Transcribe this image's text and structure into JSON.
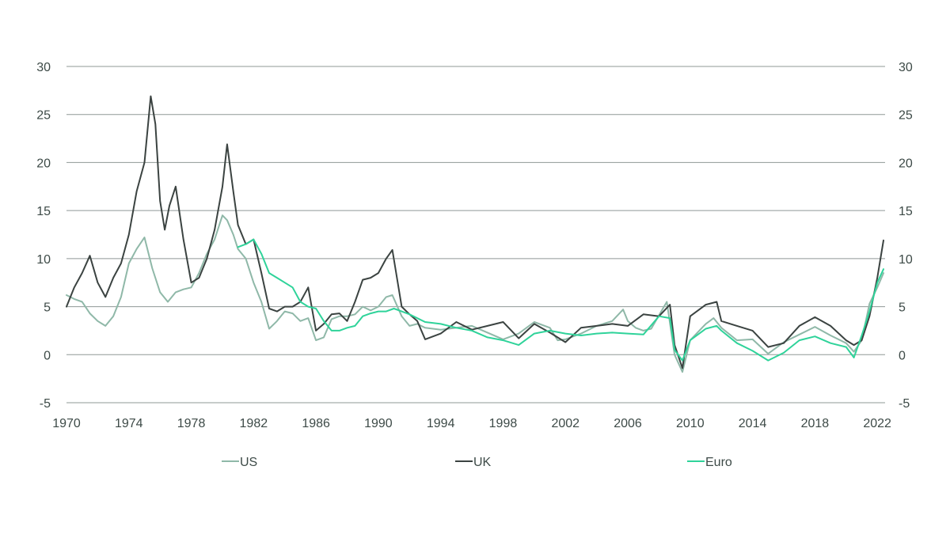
{
  "chart_data": {
    "type": "line",
    "title": "",
    "xlabel": "",
    "ylabel": "",
    "xlim": [
      1970,
      2022.5
    ],
    "ylim": [
      -5,
      30
    ],
    "y_ticks": [
      30,
      25,
      20,
      15,
      10,
      5,
      0,
      -5
    ],
    "y_tick_labels": [
      "30",
      "25",
      "20",
      "15",
      "10",
      "5",
      "0",
      "-5"
    ],
    "x_ticks": [
      1970,
      1974,
      1978,
      1982,
      1986,
      1990,
      1994,
      1998,
      2002,
      2006,
      2010,
      2014,
      2018,
      2022
    ],
    "x_tick_labels": [
      "1970",
      "1974",
      "1978",
      "1982",
      "1986",
      "1990",
      "1994",
      "1998",
      "2002",
      "2006",
      "2010",
      "2014",
      "2018",
      "2022"
    ],
    "grid": true,
    "dual_y_axis": true,
    "legend_position": "bottom",
    "series": [
      {
        "name": "US",
        "color": "#8fb8a8",
        "x": [
          1970,
          1970.5,
          1971,
          1971.5,
          1972,
          1972.5,
          1973,
          1973.5,
          1974,
          1974.5,
          1975,
          1975.5,
          1976,
          1976.5,
          1977,
          1977.5,
          1978,
          1978.5,
          1979,
          1979.5,
          1980,
          1980.3,
          1980.7,
          1981,
          1981.5,
          1982,
          1982.5,
          1983,
          1983.5,
          1984,
          1984.5,
          1985,
          1985.5,
          1986,
          1986.5,
          1987,
          1987.5,
          1988,
          1988.5,
          1989,
          1989.5,
          1990,
          1990.5,
          1990.9,
          1991.5,
          1992,
          1992.5,
          1993,
          1994,
          1995,
          1996,
          1997,
          1998,
          1999,
          2000,
          2001,
          2001.5,
          2002,
          2003,
          2004,
          2005,
          2005.7,
          2006,
          2006.5,
          2007,
          2007.5,
          2008,
          2008.5,
          2009,
          2009.5,
          2010,
          2011,
          2011.5,
          2012,
          2013,
          2014,
          2015,
          2016,
          2017,
          2018,
          2019,
          2020,
          2020.5,
          2021,
          2021.5,
          2022,
          2022.4
        ],
        "values": [
          6.2,
          5.8,
          5.5,
          4.3,
          3.5,
          3.0,
          4.0,
          6.0,
          9.5,
          11.0,
          12.2,
          9.0,
          6.5,
          5.5,
          6.5,
          6.8,
          7.0,
          8.5,
          10.5,
          12.0,
          14.5,
          14.0,
          12.5,
          11.0,
          10.0,
          7.5,
          5.5,
          2.7,
          3.5,
          4.5,
          4.3,
          3.5,
          3.8,
          1.5,
          1.8,
          3.7,
          4.0,
          4.0,
          4.2,
          5.0,
          4.6,
          5.0,
          6.0,
          6.2,
          4.0,
          3.0,
          3.2,
          2.8,
          2.6,
          2.8,
          3.0,
          2.3,
          1.6,
          2.2,
          3.4,
          2.8,
          1.5,
          1.6,
          2.2,
          3.0,
          3.5,
          4.7,
          3.5,
          2.8,
          2.5,
          2.7,
          4.1,
          5.5,
          0.0,
          -1.8,
          1.5,
          3.2,
          3.8,
          2.8,
          1.5,
          1.6,
          0.1,
          1.3,
          2.1,
          2.9,
          2.0,
          1.2,
          0.3,
          1.5,
          5.3,
          7.0,
          8.5
        ]
      },
      {
        "name": "UK",
        "color": "#3b4341",
        "x": [
          1970,
          1970.5,
          1971,
          1971.5,
          1972,
          1972.5,
          1973,
          1973.5,
          1974,
          1974.5,
          1975,
          1975.4,
          1975.7,
          1976,
          1976.3,
          1976.6,
          1977,
          1977.5,
          1978,
          1978.5,
          1979,
          1979.5,
          1980,
          1980.3,
          1980.7,
          1981,
          1981.5,
          1982,
          1982.5,
          1983,
          1983.5,
          1984,
          1984.5,
          1985,
          1985.5,
          1986,
          1986.5,
          1987,
          1987.5,
          1988,
          1988.5,
          1989,
          1989.5,
          1990,
          1990.5,
          1990.9,
          1991.5,
          1992,
          1992.5,
          1993,
          1994,
          1995,
          1996,
          1997,
          1998,
          1999,
          2000,
          2001,
          2002,
          2003,
          2004,
          2005,
          2006,
          2007,
          2008,
          2008.7,
          2009,
          2009.5,
          2010,
          2011,
          2011.7,
          2012,
          2013,
          2014,
          2015,
          2016,
          2017,
          2018,
          2019,
          2020,
          2020.5,
          2021,
          2021.5,
          2022,
          2022.4
        ],
        "values": [
          5.0,
          7.0,
          8.5,
          10.3,
          7.5,
          6.0,
          8.0,
          9.5,
          12.5,
          17.0,
          20.0,
          26.9,
          24.0,
          16.0,
          13.0,
          15.5,
          17.5,
          12.0,
          7.5,
          8.0,
          10.0,
          13.0,
          17.5,
          21.9,
          17.0,
          13.5,
          11.5,
          12.0,
          8.5,
          4.8,
          4.5,
          5.0,
          5.0,
          5.5,
          7.0,
          2.5,
          3.2,
          4.2,
          4.3,
          3.5,
          5.5,
          7.8,
          8.0,
          8.5,
          10.0,
          10.9,
          5.0,
          4.2,
          3.5,
          1.6,
          2.2,
          3.4,
          2.6,
          3.0,
          3.4,
          1.7,
          3.2,
          2.3,
          1.3,
          2.8,
          3.0,
          3.2,
          3.0,
          4.2,
          4.0,
          5.2,
          1.0,
          -1.4,
          4.0,
          5.2,
          5.5,
          3.5,
          3.0,
          2.5,
          0.8,
          1.2,
          3.0,
          3.9,
          3.0,
          1.5,
          1.0,
          1.5,
          4.0,
          8.0,
          11.9
        ]
      },
      {
        "name": "Euro",
        "color": "#2fd39a",
        "x": [
          1981,
          1981.5,
          1982,
          1982.5,
          1983,
          1983.5,
          1984,
          1984.5,
          1985,
          1985.5,
          1986,
          1986.5,
          1987,
          1987.5,
          1988,
          1988.5,
          1989,
          1989.5,
          1990,
          1990.5,
          1991,
          1991.5,
          1992,
          1993,
          1994,
          1995,
          1996,
          1997,
          1998,
          1999,
          2000,
          2001,
          2002,
          2003,
          2004,
          2005,
          2006,
          2007,
          2008,
          2008.7,
          2009,
          2009.5,
          2010,
          2011,
          2011.7,
          2012,
          2013,
          2014,
          2015,
          2016,
          2017,
          2018,
          2019,
          2020,
          2020.5,
          2021,
          2021.5,
          2022,
          2022.4
        ],
        "values": [
          11.2,
          11.5,
          12.0,
          10.5,
          8.5,
          8.0,
          7.5,
          7.0,
          5.5,
          5.0,
          4.8,
          3.5,
          2.5,
          2.5,
          2.8,
          3.0,
          4.0,
          4.3,
          4.5,
          4.5,
          4.8,
          4.5,
          4.2,
          3.4,
          3.2,
          2.8,
          2.5,
          1.8,
          1.5,
          1.0,
          2.2,
          2.5,
          2.2,
          2.0,
          2.2,
          2.3,
          2.2,
          2.1,
          4.0,
          3.8,
          0.5,
          -0.6,
          1.5,
          2.7,
          3.0,
          2.5,
          1.2,
          0.4,
          -0.6,
          0.2,
          1.5,
          1.9,
          1.2,
          0.8,
          -0.3,
          2.0,
          4.5,
          7.5,
          8.9
        ]
      }
    ]
  }
}
